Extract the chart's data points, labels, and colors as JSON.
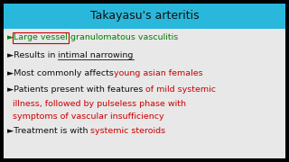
{
  "title": "Takayasu's arteritis",
  "title_bg": "#29B8DB",
  "title_color": "#111111",
  "bg_color": "#e8e8e8",
  "outer_bg": "#000000",
  "green": "#008000",
  "black": "#111111",
  "red": "#cc0000",
  "red_box": "#cc0000",
  "lines": [
    [
      {
        "t": "►Large vessel",
        "c": "green",
        "box": true
      },
      {
        "t": " granulomatous vasculitis",
        "c": "green",
        "box": false
      }
    ],
    [
      {
        "t": "►Results in ",
        "c": "black",
        "box": false
      },
      {
        "t": "intimal narrowing",
        "c": "black",
        "ul": true,
        "box": false
      }
    ],
    [
      {
        "t": "►Most commonly affects",
        "c": "black",
        "box": false
      },
      {
        "t": "young asian females",
        "c": "red",
        "box": false
      }
    ],
    [
      {
        "t": "►Patients present with features ",
        "c": "black",
        "box": false
      },
      {
        "t": "of mild systemic",
        "c": "red",
        "box": false
      }
    ],
    [
      {
        "t": "  illness, followed by pulseless phase with",
        "c": "red",
        "box": false
      }
    ],
    [
      {
        "t": "  symptoms of vascular insufficiency",
        "c": "red",
        "box": false
      }
    ],
    [
      {
        "t": "►Treatment is with ",
        "c": "black",
        "box": false
      },
      {
        "t": "systemic steroids",
        "c": "red",
        "box": false
      }
    ]
  ],
  "font_size": 6.8,
  "title_font_size": 9.0
}
